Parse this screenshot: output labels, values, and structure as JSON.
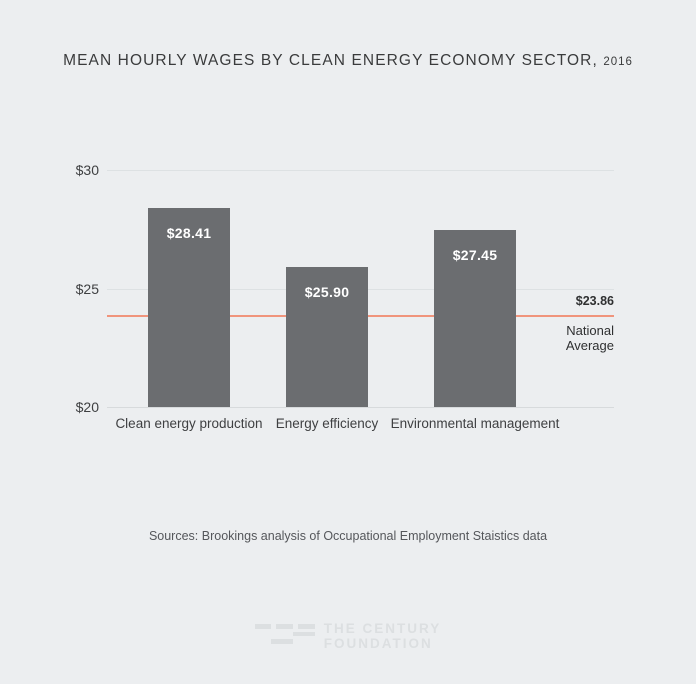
{
  "title": {
    "main": "MEAN HOURLY WAGES BY CLEAN ENERGY ECONOMY SECTOR,",
    "year": "2016"
  },
  "chart_data": {
    "type": "bar",
    "title": "MEAN HOURLY WAGES BY CLEAN ENERGY ECONOMY SECTOR, 2016",
    "categories": [
      "Clean energy production",
      "Energy efficiency",
      "Environmental management"
    ],
    "values": [
      28.41,
      25.9,
      27.45
    ],
    "bar_labels": [
      "$28.41",
      "$25.90",
      "$27.45"
    ],
    "xlabel": "",
    "ylabel": "",
    "ylim": [
      20,
      30
    ],
    "yticks": [
      {
        "value": 30,
        "label": "$30"
      },
      {
        "value": 25,
        "label": "$25"
      },
      {
        "value": 20,
        "label": "$20"
      }
    ],
    "grid": true,
    "legend_position": "none",
    "bar_color": "#6b6d70",
    "value_label_color": "#ffffff",
    "reference_line": {
      "value": 23.86,
      "label_value": "$23.86",
      "label_text": "National Average",
      "color": "#f0947c"
    }
  },
  "footer": {
    "sources": "Sources: Brookings analysis of Occupational Employment Staistics data",
    "logo_line1": "THE CENTURY",
    "logo_line2": "FOUNDATION"
  },
  "colors": {
    "background": "#eceef0",
    "bar": "#6b6d70",
    "reference": "#f0947c",
    "gridline": "#dde1e3",
    "title_text": "#3a3b3c",
    "logo": "#dcdfe1"
  }
}
